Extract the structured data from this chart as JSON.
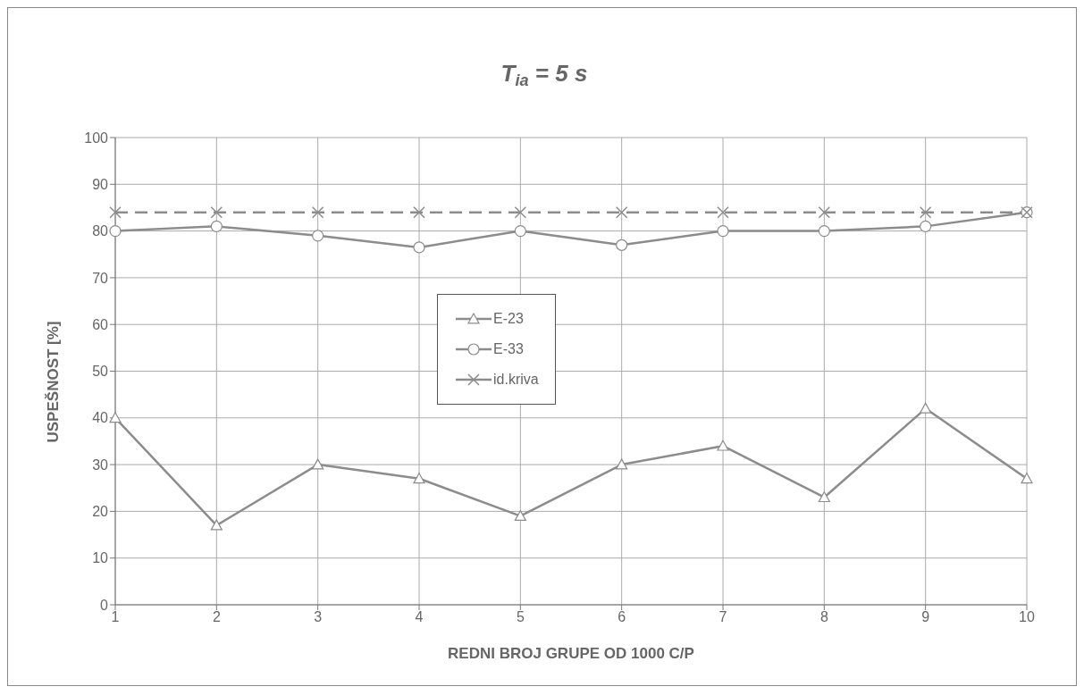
{
  "chart_data": {
    "type": "line",
    "title": "T$_{ia}$ = 5 s",
    "xlabel": "REDNI BROJ GRUPE OD 1000 C/P",
    "ylabel": "USPEŠNOST [%]",
    "categories": [
      "1",
      "2",
      "3",
      "4",
      "5",
      "6",
      "7",
      "8",
      "9",
      "10"
    ],
    "series": [
      {
        "name": "E-23",
        "color": "#8c8c8c",
        "marker": "triangle",
        "line_style": "solid",
        "values": [
          40,
          17,
          30,
          27,
          19,
          30,
          34,
          23,
          42,
          27
        ]
      },
      {
        "name": "E-33",
        "color": "#8c8c8c",
        "marker": "circle",
        "line_style": "solid",
        "values": [
          80,
          81,
          79,
          76.5,
          80,
          77,
          80,
          80,
          81,
          84
        ]
      },
      {
        "name": "id.kriva",
        "color": "#8c8c8c",
        "marker": "cross",
        "line_style": "dashed",
        "values": [
          84,
          84,
          84,
          84,
          84,
          84,
          84,
          84,
          84,
          84
        ]
      }
    ],
    "ylim": [
      0,
      100
    ],
    "yticks": [
      0,
      10,
      20,
      30,
      40,
      50,
      60,
      70,
      80,
      90,
      100
    ],
    "grid": true,
    "legend": "center"
  }
}
